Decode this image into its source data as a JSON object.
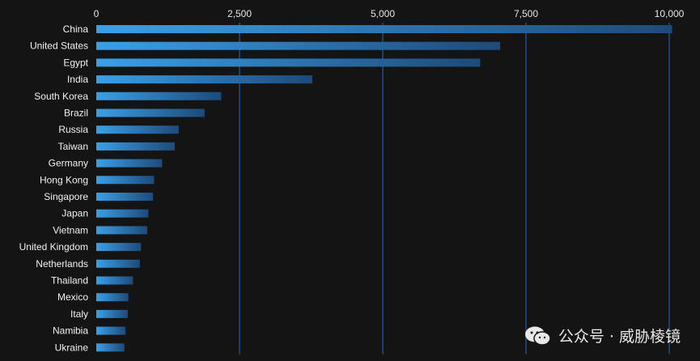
{
  "chart_data": {
    "type": "bar",
    "orientation": "horizontal",
    "categories": [
      "China",
      "United States",
      "Egypt",
      "India",
      "South Korea",
      "Brazil",
      "Russia",
      "Taiwan",
      "Germany",
      "Hong Kong",
      "Singapore",
      "Japan",
      "Vietnam",
      "United Kingdom",
      "Netherlands",
      "Thailand",
      "Mexico",
      "Italy",
      "Namibia",
      "Ukraine"
    ],
    "values": [
      10050,
      7050,
      6700,
      3770,
      2180,
      1890,
      1440,
      1370,
      1150,
      1010,
      990,
      910,
      890,
      780,
      760,
      640,
      560,
      550,
      510,
      490
    ],
    "xlim": [
      0,
      10000
    ],
    "xticks": [
      0,
      2500,
      5000,
      7500,
      10000
    ],
    "xtick_labels": [
      "0",
      "2,500",
      "5,000",
      "7,500",
      "10,000"
    ],
    "grid": true,
    "bar_color_start": "#3aa0e8",
    "bar_color_end": "#1d4a7a",
    "grid_color": "#1e4f86",
    "background": "#141414"
  },
  "watermark": {
    "text": "公众号 · 威胁棱镜",
    "icon": "wechat-icon"
  }
}
